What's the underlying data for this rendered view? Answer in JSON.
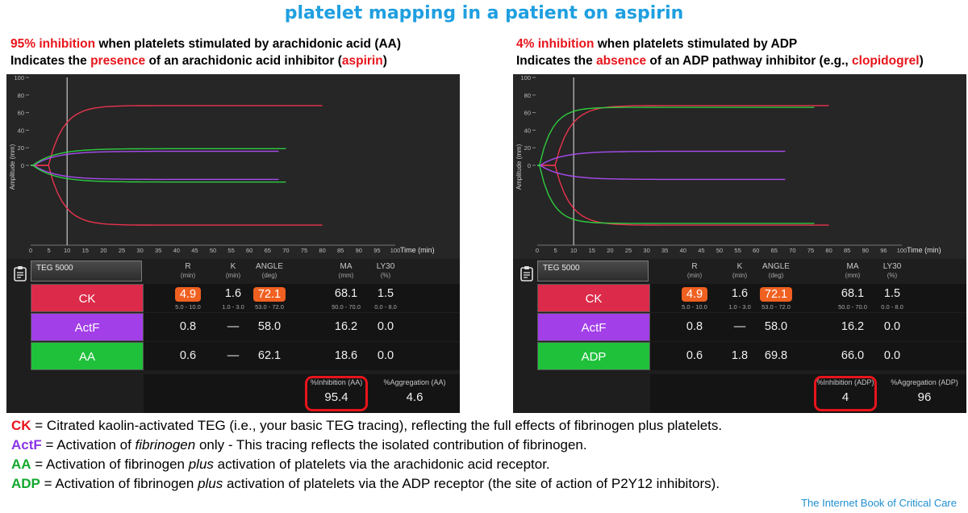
{
  "title": "platelet mapping in a patient on aspirin",
  "left_heading": {
    "line1_red": "95% inhibition",
    "line1_rest": " when platelets stimulated by arachidonic acid (AA)",
    "line2_a": "Indicates the ",
    "line2_red": "presence",
    "line2_b": " of an arachidonic acid inhibitor (",
    "line2_red2": "aspirin",
    "line2_c": ")"
  },
  "right_heading": {
    "line1_red": "4% inhibition",
    "line1_rest": " when platelets stimulated by ADP",
    "line2_a": "Indicates the ",
    "line2_red": "absence",
    "line2_b": " of an ADP pathway inhibitor (e.g., ",
    "line2_red2": "clopidogrel",
    "line2_c": ")"
  },
  "panels": [
    {
      "device": "TEG 5000",
      "x_axis_label": "Time (min)",
      "y_axis_label": "Amplitude (mm)",
      "x_ticks": [
        "0",
        "5",
        "10",
        "15",
        "20",
        "25",
        "30",
        "35",
        "40",
        "45",
        "50",
        "55",
        "60",
        "65",
        "70",
        "75",
        "80",
        "85",
        "90",
        "95",
        "100"
      ],
      "y_ticks": [
        "100",
        "80",
        "60",
        "40",
        "20",
        "0"
      ],
      "headers": [
        {
          "name": "R",
          "unit": "(min)"
        },
        {
          "name": "K",
          "unit": "(min)"
        },
        {
          "name": "ANGLE",
          "unit": "(deg)"
        },
        {
          "name": "MA",
          "unit": "(mm)"
        },
        {
          "name": "LY30",
          "unit": "(%)"
        }
      ],
      "rows": [
        {
          "label": "CK",
          "color": "#dc2b4a",
          "values": [
            "4.9",
            "1.6",
            "72.1",
            "68.1",
            "1.5"
          ],
          "ranges": [
            "5.0 - 10.0",
            "1.0 - 3.0",
            "53.0 - 72.0",
            "50.0 - 70.0",
            "0.0 - 8.0"
          ]
        },
        {
          "label": "ActF",
          "color": "#a23fe8",
          "values": [
            "0.8",
            "—",
            "58.0",
            "16.2",
            "0.0"
          ]
        },
        {
          "label": "AA",
          "color": "#1fc13b",
          "values": [
            "0.6",
            "—",
            "62.1",
            "18.6",
            "0.0"
          ]
        }
      ],
      "inhibition_label": "%Inhibition (AA)",
      "inhibition_value": "95.4",
      "aggregation_label": "%Aggregation (AA)",
      "aggregation_value": "4.6",
      "curves": {
        "ck": {
          "end_min": 80,
          "ma": 68
        },
        "actf": {
          "end_min": 68,
          "ma": 16
        },
        "agonist": {
          "end_min": 70,
          "ma": 19
        }
      }
    },
    {
      "device": "TEG 5000",
      "x_axis_label": "Time (min)",
      "y_axis_label": "Amplitude (mm)",
      "x_ticks": [
        "0",
        "5",
        "10",
        "15",
        "20",
        "25",
        "30",
        "35",
        "40",
        "45",
        "50",
        "55",
        "60",
        "65",
        "70",
        "75",
        "80",
        "85",
        "90",
        "96",
        "100"
      ],
      "y_ticks": [
        "100",
        "80",
        "60",
        "40",
        "20",
        "0"
      ],
      "headers": [
        {
          "name": "R",
          "unit": "(min)"
        },
        {
          "name": "K",
          "unit": "(min)"
        },
        {
          "name": "ANGLE",
          "unit": "(deg)"
        },
        {
          "name": "MA",
          "unit": "(mm)"
        },
        {
          "name": "LY30",
          "unit": "(%)"
        }
      ],
      "rows": [
        {
          "label": "CK",
          "color": "#dc2b4a",
          "values": [
            "4.9",
            "1.6",
            "72.1",
            "68.1",
            "1.5"
          ],
          "ranges": [
            "5.0 - 10.0",
            "1.0 - 3.0",
            "53.0 - 72.0",
            "50.0 - 70.0",
            "0.0 - 8.0"
          ]
        },
        {
          "label": "ActF",
          "color": "#a23fe8",
          "values": [
            "0.8",
            "—",
            "58.0",
            "16.2",
            "0.0"
          ]
        },
        {
          "label": "ADP",
          "color": "#1fc13b",
          "values": [
            "0.6",
            "1.8",
            "69.8",
            "66.0",
            "0.0"
          ]
        }
      ],
      "inhibition_label": "%Inhibition (ADP)",
      "inhibition_value": "4",
      "aggregation_label": "%Aggregation (ADP)",
      "aggregation_value": "96",
      "curves": {
        "ck": {
          "end_min": 80,
          "ma": 68
        },
        "actf": {
          "end_min": 68,
          "ma": 16
        },
        "agonist": {
          "end_min": 76,
          "ma": 66
        }
      }
    }
  ],
  "legend": [
    {
      "term": "CK",
      "color": "#e8141b",
      "parts": [
        " = Citrated kaolin-activated TEG (i.e., your basic TEG tracing), reflecting the full effects of fibrinogen plus platelets."
      ]
    },
    {
      "term": "ActF",
      "color": "#8b35e6",
      "parts": [
        " = Activation of ",
        "fibrinogen",
        " only - This tracing reflects the isolated contribution of fibrinogen."
      ]
    },
    {
      "term": "AA",
      "color": "#12a82d",
      "parts": [
        " = Activation of fibrinogen ",
        "plus",
        " activation of platelets via the arachidonic acid receptor."
      ]
    },
    {
      "term": "ADP",
      "color": "#12a82d",
      "parts": [
        " = Activation of fibrinogen ",
        "plus",
        " activation of platelets via the ADP receptor (the site of action of P2Y12 inhibitors)."
      ]
    }
  ],
  "footer": "The Internet Book of Critical Care",
  "colors": {
    "title": "#1f9fe0",
    "emphasis": "#e8141b",
    "ck": "#e8344e",
    "actf": "#a84cf0",
    "agonist": "#2ecc40",
    "cursor": "#c8c8c8"
  }
}
